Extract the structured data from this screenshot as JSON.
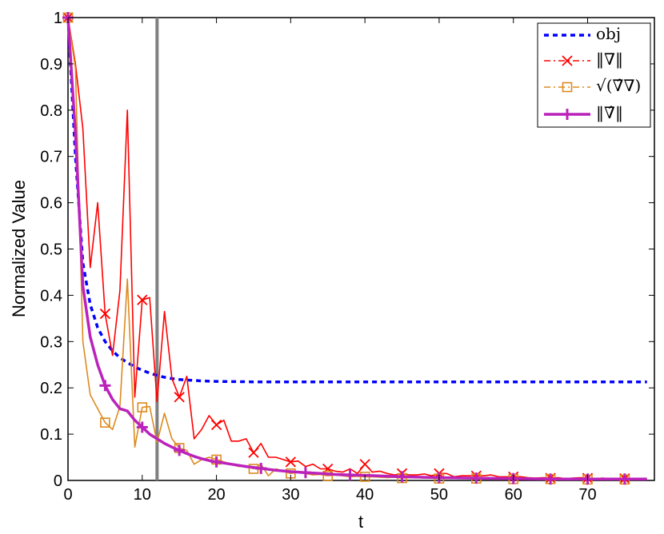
{
  "chart_data": {
    "type": "line",
    "xlabel": "t",
    "ylabel": "Normalized Value",
    "xlim": [
      0,
      79
    ],
    "ylim": [
      0,
      1
    ],
    "x_ticks": [
      0,
      10,
      20,
      30,
      40,
      50,
      60,
      70
    ],
    "y_ticks": [
      0,
      0.1,
      0.2,
      0.3,
      0.4,
      0.5,
      0.6,
      0.7,
      0.8,
      0.9,
      1
    ],
    "y_tick_labels": [
      "0",
      "0.1",
      "0.2",
      "0.3",
      "0.4",
      "0.5",
      "0.6",
      "0.7",
      "0.8",
      "0.9",
      "1"
    ],
    "grid": false,
    "legend_position": "top-right",
    "vertical_line": {
      "x": 12,
      "color": "#808080"
    },
    "series": [
      {
        "name": "obj",
        "color": "#0000ff",
        "style": "dotted",
        "marker": "none",
        "x": [
          0,
          1,
          2,
          3,
          4,
          5,
          6,
          7,
          8,
          9,
          10,
          11,
          12,
          13,
          14,
          15,
          16,
          17,
          18,
          20,
          25,
          30,
          40,
          50,
          60,
          70,
          78
        ],
        "y": [
          1.0,
          0.7,
          0.47,
          0.38,
          0.33,
          0.3,
          0.28,
          0.265,
          0.255,
          0.245,
          0.238,
          0.232,
          0.227,
          0.223,
          0.22,
          0.218,
          0.217,
          0.216,
          0.215,
          0.214,
          0.213,
          0.213,
          0.213,
          0.213,
          0.213,
          0.213,
          0.213
        ]
      },
      {
        "name": "‖∇‖",
        "color": "#ff0000",
        "style": "solid",
        "marker": "x",
        "marker_every": 5,
        "x": [
          0,
          1,
          2,
          3,
          4,
          5,
          6,
          7,
          8,
          9,
          10,
          11,
          12,
          13,
          14,
          15,
          16,
          17,
          18,
          19,
          20,
          21,
          22,
          23,
          24,
          25,
          26,
          27,
          28,
          29,
          30,
          31,
          32,
          33,
          34,
          35,
          36,
          37,
          38,
          39,
          40,
          41,
          42,
          43,
          44,
          45,
          46,
          47,
          48,
          49,
          50,
          51,
          52,
          53,
          54,
          55,
          56,
          57,
          58,
          59,
          60,
          61,
          62,
          63,
          64,
          65,
          66,
          67,
          68,
          69,
          70,
          71,
          72,
          73,
          74,
          75,
          76,
          77,
          78
        ],
        "y": [
          1.0,
          0.9,
          0.76,
          0.46,
          0.6,
          0.36,
          0.27,
          0.41,
          0.8,
          0.18,
          0.39,
          0.395,
          0.17,
          0.365,
          0.22,
          0.18,
          0.225,
          0.09,
          0.11,
          0.14,
          0.12,
          0.13,
          0.085,
          0.085,
          0.09,
          0.06,
          0.08,
          0.05,
          0.05,
          0.045,
          0.04,
          0.042,
          0.03,
          0.035,
          0.025,
          0.025,
          0.02,
          0.018,
          0.025,
          0.015,
          0.035,
          0.018,
          0.02,
          0.015,
          0.012,
          0.015,
          0.012,
          0.012,
          0.014,
          0.01,
          0.015,
          0.015,
          0.008,
          0.01,
          0.01,
          0.01,
          0.01,
          0.012,
          0.008,
          0.008,
          0.008,
          0.008,
          0.006,
          0.005,
          0.006,
          0.005,
          0.006,
          0.004,
          0.005,
          0.006,
          0.005,
          0.004,
          0.005,
          0.004,
          0.004,
          0.004,
          0.004,
          0.003,
          0.003
        ]
      },
      {
        "name": "√(∇̂∇)",
        "color": "#dd8a1e",
        "style": "solid",
        "marker": "square",
        "marker_every": 5,
        "x": [
          0,
          1,
          2,
          3,
          4,
          5,
          6,
          7,
          8,
          9,
          10,
          11,
          12,
          13,
          14,
          15,
          16,
          17,
          18,
          19,
          20,
          21,
          22,
          23,
          24,
          25,
          26,
          27,
          28,
          29,
          30,
          31,
          32,
          33,
          34,
          35,
          36,
          37,
          38,
          39,
          40,
          41,
          42,
          43,
          44,
          45,
          46,
          47,
          48,
          49,
          50,
          51,
          52,
          53,
          54,
          55,
          56,
          57,
          58,
          59,
          60,
          61,
          62,
          63,
          64,
          65,
          66,
          67,
          68,
          69,
          70,
          71,
          72,
          73,
          74,
          75,
          76,
          77,
          78
        ],
        "y": [
          1.0,
          0.89,
          0.3,
          0.185,
          0.155,
          0.125,
          0.11,
          0.16,
          0.435,
          0.072,
          0.158,
          0.16,
          0.082,
          0.145,
          0.09,
          0.07,
          0.065,
          0.035,
          0.045,
          0.05,
          0.045,
          0.04,
          0.035,
          0.03,
          0.032,
          0.025,
          0.035,
          0.01,
          0.025,
          0.02,
          0.015,
          0.018,
          0.015,
          0.012,
          0.013,
          0.01,
          0.012,
          0.01,
          0.008,
          0.009,
          0.008,
          0.008,
          0.007,
          0.006,
          0.007,
          0.005,
          0.006,
          0.006,
          0.005,
          0.005,
          0.004,
          0.004,
          0.004,
          0.005,
          0.004,
          0.004,
          0.004,
          0.003,
          0.003,
          0.003,
          0.003,
          0.003,
          0.003,
          0.003,
          0.003,
          0.003,
          0.003,
          0.003,
          0.002,
          0.002,
          0.002,
          0.002,
          0.002,
          0.002,
          0.002,
          0.002,
          0.002,
          0.002,
          0.002
        ]
      },
      {
        "name": "‖∇̂‖",
        "color": "#bb22bb",
        "style": "solid-thick",
        "marker": "plus",
        "marker_every": 5,
        "x": [
          0,
          1,
          2,
          3,
          4,
          5,
          6,
          7,
          8,
          9,
          10,
          11,
          12,
          13,
          14,
          15,
          16,
          17,
          18,
          19,
          20,
          22,
          24,
          26,
          28,
          30,
          32,
          34,
          36,
          38,
          40,
          45,
          50,
          55,
          60,
          65,
          70,
          75,
          78
        ],
        "y": [
          1.0,
          0.75,
          0.42,
          0.31,
          0.25,
          0.205,
          0.175,
          0.155,
          0.15,
          0.13,
          0.115,
          0.1,
          0.09,
          0.08,
          0.072,
          0.065,
          0.058,
          0.052,
          0.047,
          0.043,
          0.04,
          0.035,
          0.03,
          0.026,
          0.022,
          0.019,
          0.017,
          0.015,
          0.013,
          0.012,
          0.011,
          0.008,
          0.006,
          0.005,
          0.004,
          0.003,
          0.003,
          0.003,
          0.003
        ]
      }
    ]
  }
}
